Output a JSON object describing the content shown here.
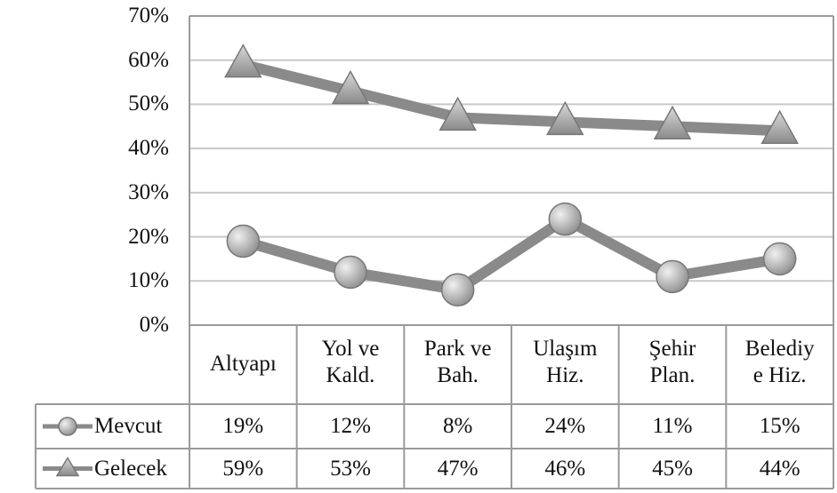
{
  "chart_data": {
    "type": "line",
    "categories": [
      "Altyapı",
      "Yol ve\nKald.",
      "Park ve\nBah.",
      "Ulaşım\nHiz.",
      "Şehir\nPlan.",
      "Belediy\ne Hiz."
    ],
    "series": [
      {
        "name": "Mevcut",
        "color": "#8a8a8a",
        "marker": "circle",
        "values": [
          19,
          12,
          8,
          24,
          11,
          15
        ],
        "value_labels": [
          "19%",
          "12%",
          "8%",
          "24%",
          "11%",
          "15%"
        ]
      },
      {
        "name": "Gelecek",
        "color": "#8a8a8a",
        "marker": "triangle",
        "values": [
          59,
          53,
          47,
          46,
          45,
          44
        ],
        "value_labels": [
          "59%",
          "53%",
          "47%",
          "46%",
          "45%",
          "44%"
        ]
      }
    ],
    "ylim": [
      0,
      70
    ],
    "yticks": [
      {
        "value": 0,
        "label": "0%"
      },
      {
        "value": 10,
        "label": "10%"
      },
      {
        "value": 20,
        "label": "20%"
      },
      {
        "value": 30,
        "label": "30%"
      },
      {
        "value": 40,
        "label": "40%"
      },
      {
        "value": 50,
        "label": "50%"
      },
      {
        "value": 60,
        "label": "60%"
      },
      {
        "value": 70,
        "label": "70%"
      }
    ],
    "grid": true
  }
}
